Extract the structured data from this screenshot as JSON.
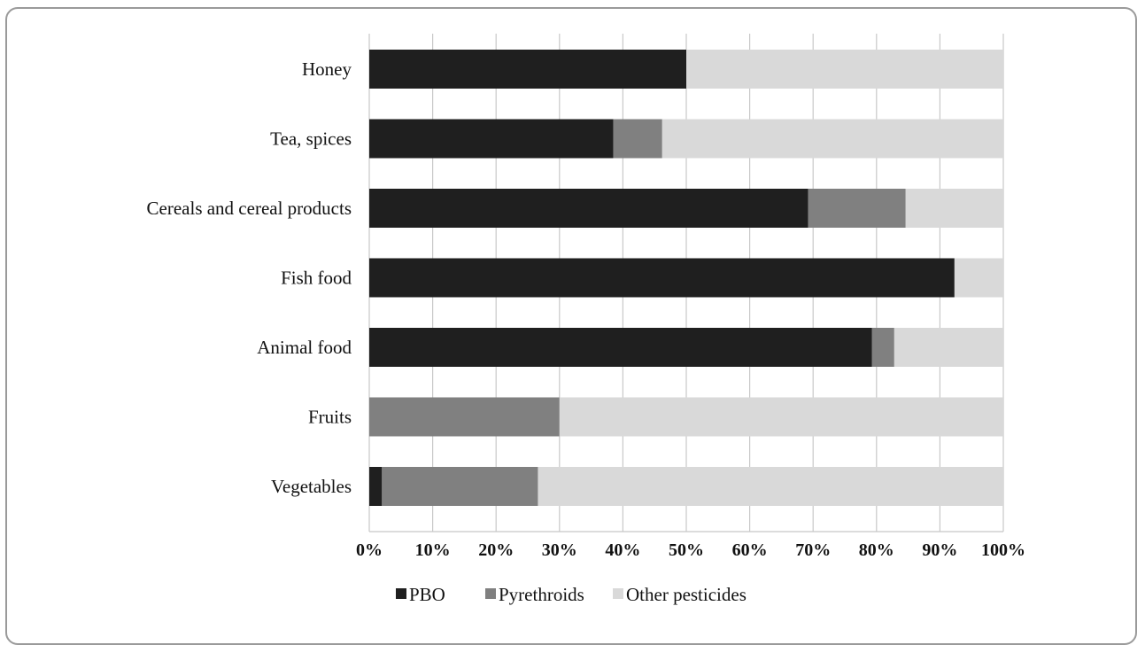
{
  "chart_data": {
    "type": "bar",
    "orientation": "horizontal",
    "stacked": "percent",
    "categories": [
      "Honey",
      "Tea, spices",
      "Cereals and cereal products",
      "Fish food",
      "Animal food",
      "Fruits",
      "Vegetables"
    ],
    "series": [
      {
        "name": "PBO",
        "color": "#1f1f1f",
        "values": [
          50,
          38.5,
          69.2,
          92.3,
          79.3,
          0,
          2
        ]
      },
      {
        "name": "Pyrethroids",
        "color": "#808080",
        "values": [
          0,
          7.7,
          15.4,
          0,
          3.5,
          30,
          24.6
        ]
      },
      {
        "name": "Other pesticides",
        "color": "#d9d9d9",
        "values": [
          50,
          53.8,
          15.4,
          7.7,
          17.2,
          70,
          73.4
        ]
      }
    ],
    "xlim": [
      0,
      100
    ],
    "xticks": [
      "0%",
      "10%",
      "20%",
      "30%",
      "40%",
      "50%",
      "60%",
      "70%",
      "80%",
      "90%",
      "100%"
    ],
    "grid": true,
    "legend": "bottom"
  }
}
